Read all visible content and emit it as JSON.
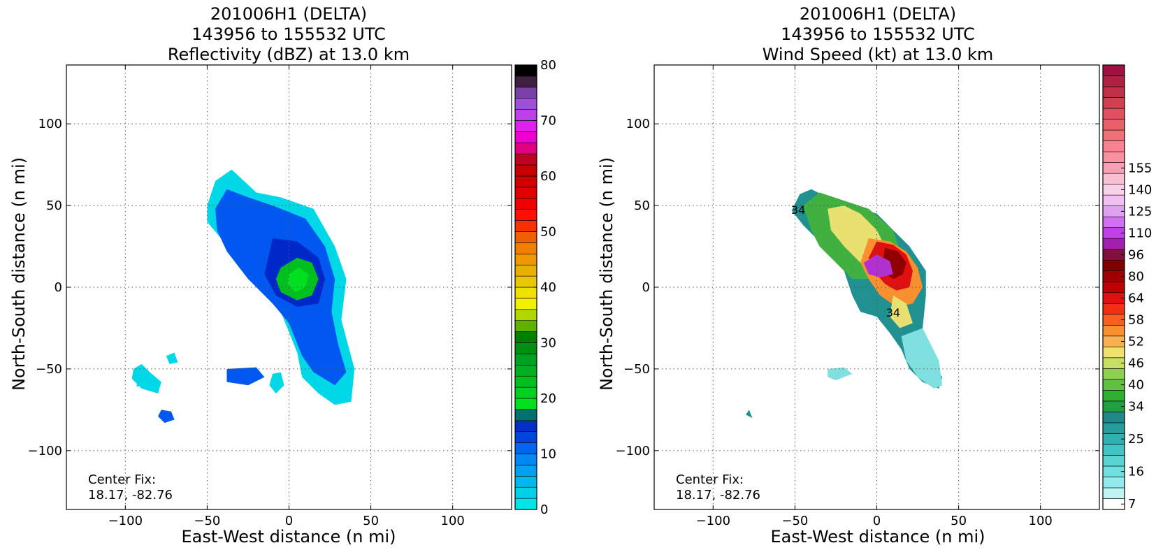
{
  "chart_data": [
    {
      "type": "heatmap",
      "title": [
        "201006H1 (DELTA)",
        "143956 to 155532 UTC",
        "Reflectivity (dBZ) at 13.0 km"
      ],
      "xlabel": "East-West distance (n mi)",
      "ylabel": "North-South distance (n mi)",
      "xlim": [
        -136,
        136
      ],
      "ylim": [
        -136,
        136
      ],
      "xticks": [
        -100,
        -50,
        0,
        50,
        100
      ],
      "yticks": [
        -100,
        -50,
        0,
        50,
        100
      ],
      "xtick_labels": [
        "−100",
        "−50",
        "0",
        "50",
        "100"
      ],
      "ytick_labels": [
        "−100",
        "−50",
        "0",
        "50",
        "100"
      ],
      "grid": true,
      "annotation": [
        "Center Fix:",
        "18.17, -82.76"
      ],
      "colorbar": {
        "min": 0,
        "max": 80,
        "tick_values": [
          0,
          10,
          20,
          30,
          40,
          50,
          60,
          70,
          80
        ],
        "tick_labels": [
          "0",
          "10",
          "20",
          "30",
          "40",
          "50",
          "60",
          "70",
          "80"
        ],
        "colors": [
          "#00e5e5",
          "#00d0e8",
          "#00b8ec",
          "#00a0f0",
          "#0088f4",
          "#0066f0",
          "#0044e0",
          "#0030c8",
          "#007070",
          "#00e020",
          "#00d020",
          "#00c020",
          "#00b020",
          "#00a020",
          "#009010",
          "#008000",
          "#60b000",
          "#b0d800",
          "#f0f000",
          "#f0e000",
          "#e8c800",
          "#e8b000",
          "#f09800",
          "#f08000",
          "#f06000",
          "#f83000",
          "#ff1000",
          "#f00000",
          "#e00000",
          "#d00000",
          "#c80000",
          "#c00020",
          "#e00080",
          "#f000d0",
          "#e020f0",
          "#c040e8",
          "#a050d8",
          "#7840a8",
          "#402040",
          "#000000"
        ]
      },
      "regions": [
        {
          "level": "low",
          "color": "#00d8e8",
          "pts": [
            [
              -50,
              50
            ],
            [
              -45,
              65
            ],
            [
              -35,
              72
            ],
            [
              -20,
              58
            ],
            [
              -5,
              55
            ],
            [
              15,
              48
            ],
            [
              28,
              25
            ],
            [
              35,
              5
            ],
            [
              32,
              -20
            ],
            [
              40,
              -50
            ],
            [
              38,
              -70
            ],
            [
              28,
              -72
            ],
            [
              18,
              -65
            ],
            [
              8,
              -55
            ],
            [
              5,
              -40
            ],
            [
              -5,
              -15
            ],
            [
              -20,
              0
            ],
            [
              -30,
              15
            ],
            [
              -40,
              28
            ],
            [
              -50,
              40
            ]
          ]
        },
        {
          "level": "mid",
          "color": "#0058f0",
          "pts": [
            [
              -45,
              48
            ],
            [
              -38,
              60
            ],
            [
              -25,
              55
            ],
            [
              -10,
              50
            ],
            [
              10,
              42
            ],
            [
              22,
              25
            ],
            [
              28,
              5
            ],
            [
              26,
              -15
            ],
            [
              30,
              -35
            ],
            [
              35,
              -52
            ],
            [
              28,
              -60
            ],
            [
              15,
              -52
            ],
            [
              8,
              -42
            ],
            [
              0,
              -22
            ],
            [
              -10,
              -10
            ],
            [
              -25,
              5
            ],
            [
              -38,
              22
            ],
            [
              -44,
              35
            ]
          ]
        },
        {
          "level": "dark",
          "color": "#0028c8",
          "pts": [
            [
              -10,
              30
            ],
            [
              5,
              28
            ],
            [
              18,
              18
            ],
            [
              22,
              5
            ],
            [
              18,
              -10
            ],
            [
              5,
              -12
            ],
            [
              -8,
              -5
            ],
            [
              -15,
              8
            ]
          ]
        },
        {
          "level": "green",
          "color": "#00c020",
          "pts": [
            [
              -5,
              12
            ],
            [
              5,
              18
            ],
            [
              14,
              15
            ],
            [
              18,
              5
            ],
            [
              14,
              -5
            ],
            [
              5,
              -8
            ],
            [
              -5,
              -3
            ],
            [
              -8,
              5
            ]
          ]
        },
        {
          "level": "green-light",
          "color": "#00e020",
          "pts": [
            [
              0,
              8
            ],
            [
              6,
              12
            ],
            [
              12,
              8
            ],
            [
              10,
              0
            ],
            [
              4,
              -3
            ],
            [
              -1,
              2
            ]
          ]
        },
        {
          "level": "low",
          "color": "#00d8e8",
          "pts": [
            [
              -95,
              -50
            ],
            [
              -90,
              -47
            ],
            [
              -85,
              -52
            ],
            [
              -78,
              -58
            ],
            [
              -80,
              -65
            ],
            [
              -90,
              -62
            ],
            [
              -96,
              -56
            ]
          ]
        },
        {
          "level": "mid",
          "color": "#0058f0",
          "pts": [
            [
              -80,
              -79
            ],
            [
              -78,
              -75
            ],
            [
              -72,
              -76
            ],
            [
              -70,
              -81
            ],
            [
              -76,
              -83
            ]
          ]
        },
        {
          "level": "low",
          "color": "#00d8e8",
          "pts": [
            [
              -75,
              -42
            ],
            [
              -70,
              -40
            ],
            [
              -68,
              -46
            ],
            [
              -73,
              -47
            ]
          ]
        },
        {
          "level": "mid",
          "color": "#0058f0",
          "pts": [
            [
              -38,
              -50
            ],
            [
              -20,
              -49
            ],
            [
              -15,
              -55
            ],
            [
              -25,
              -60
            ],
            [
              -38,
              -58
            ]
          ]
        },
        {
          "level": "low",
          "color": "#00d8e8",
          "pts": [
            [
              -10,
              -53
            ],
            [
              -5,
              -52
            ],
            [
              -3,
              -60
            ],
            [
              -8,
              -65
            ],
            [
              -12,
              -60
            ]
          ]
        },
        {
          "level": "low",
          "color": "#00d8e8",
          "pts": [
            [
              -93,
              -57
            ],
            [
              -91,
              -56
            ],
            [
              -90,
              -60
            ],
            [
              -93,
              -61
            ]
          ]
        }
      ]
    },
    {
      "type": "heatmap",
      "title": [
        "201006H1 (DELTA)",
        "143956 to 155532 UTC",
        "Wind Speed (kt) at 13.0 km"
      ],
      "xlabel": "East-West distance (n mi)",
      "ylabel": "North-South distance (n mi)",
      "xlim": [
        -136,
        136
      ],
      "ylim": [
        -136,
        136
      ],
      "xticks": [
        -100,
        -50,
        0,
        50,
        100
      ],
      "yticks": [
        -100,
        -50,
        0,
        50,
        100
      ],
      "xtick_labels": [
        "−100",
        "−50",
        "0",
        "50",
        "100"
      ],
      "ytick_labels": [
        "−100",
        "−50",
        "0",
        "50",
        "100"
      ],
      "grid": true,
      "annotation": [
        "Center Fix:",
        "18.17, -82.76"
      ],
      "contour_labels": [
        {
          "text": "34",
          "x": -48,
          "y": 45
        },
        {
          "text": "34",
          "x": 10,
          "y": -18
        }
      ],
      "colorbar": {
        "tick_labels": [
          "7",
          "16",
          "25",
          "34",
          "40",
          "46",
          "52",
          "58",
          "64",
          "80",
          "96",
          "110",
          "125",
          "140",
          "155"
        ],
        "tick_bins": [
          0,
          3,
          6,
          9,
          11,
          13,
          15,
          17,
          19,
          21,
          23,
          25,
          27,
          29,
          31
        ],
        "colors": [
          "#ffffff",
          "#c0f4f4",
          "#90ecec",
          "#70e0e0",
          "#58d4d4",
          "#40c4c4",
          "#30b0b0",
          "#289c9c",
          "#208888",
          "#20a040",
          "#30b030",
          "#60c040",
          "#90d050",
          "#c8e060",
          "#f0e070",
          "#f8b050",
          "#f89030",
          "#f86020",
          "#f03010",
          "#e01010",
          "#c00000",
          "#a00000",
          "#800000",
          "#801040",
          "#a020b0",
          "#c040e8",
          "#d070f0",
          "#e0a0f0",
          "#f0c0f0",
          "#f8d0e8",
          "#f8c0d0",
          "#f8a0b8",
          "#f890a0",
          "#f88090",
          "#f07078",
          "#e86068",
          "#e05060",
          "#d04050",
          "#c03048",
          "#b02040",
          "#a01040"
        ]
      },
      "regions": [
        {
          "level": "teal",
          "color": "#209090",
          "pts": [
            [
              -52,
              47
            ],
            [
              -47,
              57
            ],
            [
              -40,
              60
            ],
            [
              -30,
              55
            ],
            [
              -15,
              50
            ],
            [
              0,
              45
            ],
            [
              10,
              35
            ],
            [
              20,
              25
            ],
            [
              30,
              10
            ],
            [
              30,
              -5
            ],
            [
              28,
              -25
            ],
            [
              35,
              -48
            ],
            [
              40,
              -55
            ],
            [
              38,
              -62
            ],
            [
              28,
              -58
            ],
            [
              20,
              -50
            ],
            [
              15,
              -38
            ],
            [
              8,
              -28
            ],
            [
              0,
              -18
            ],
            [
              -10,
              -15
            ],
            [
              -15,
              -5
            ],
            [
              -20,
              10
            ],
            [
              -28,
              20
            ],
            [
              -35,
              28
            ],
            [
              -45,
              38
            ]
          ]
        },
        {
          "level": "light-teal",
          "color": "#80e0e0",
          "pts": [
            [
              15,
              -30
            ],
            [
              28,
              -25
            ],
            [
              38,
              -45
            ],
            [
              40,
              -60
            ],
            [
              35,
              -62
            ],
            [
              25,
              -55
            ],
            [
              18,
              -45
            ]
          ]
        },
        {
          "level": "green",
          "color": "#40b040",
          "pts": [
            [
              -45,
              50
            ],
            [
              -35,
              58
            ],
            [
              -20,
              53
            ],
            [
              -5,
              48
            ],
            [
              10,
              35
            ],
            [
              15,
              20
            ],
            [
              12,
              10
            ],
            [
              0,
              5
            ],
            [
              -15,
              5
            ],
            [
              -25,
              15
            ],
            [
              -35,
              25
            ],
            [
              -40,
              35
            ]
          ]
        },
        {
          "level": "yellow",
          "color": "#e8e070",
          "pts": [
            [
              -30,
              48
            ],
            [
              -20,
              50
            ],
            [
              -10,
              45
            ],
            [
              0,
              35
            ],
            [
              5,
              25
            ],
            [
              0,
              15
            ],
            [
              -10,
              15
            ],
            [
              -20,
              25
            ],
            [
              -28,
              35
            ]
          ]
        },
        {
          "level": "orange",
          "color": "#f89030",
          "pts": [
            [
              -5,
              30
            ],
            [
              8,
              28
            ],
            [
              18,
              22
            ],
            [
              25,
              12
            ],
            [
              28,
              0
            ],
            [
              22,
              -10
            ],
            [
              12,
              -12
            ],
            [
              2,
              -5
            ],
            [
              -5,
              5
            ],
            [
              -10,
              15
            ]
          ]
        },
        {
          "level": "red",
          "color": "#e01010",
          "pts": [
            [
              0,
              28
            ],
            [
              10,
              26
            ],
            [
              18,
              20
            ],
            [
              22,
              10
            ],
            [
              20,
              0
            ],
            [
              12,
              -2
            ],
            [
              5,
              2
            ],
            [
              -2,
              10
            ],
            [
              -5,
              18
            ]
          ]
        },
        {
          "level": "dark-red",
          "color": "#900000",
          "pts": [
            [
              5,
              24
            ],
            [
              13,
              22
            ],
            [
              18,
              15
            ],
            [
              16,
              8
            ],
            [
              10,
              5
            ],
            [
              3,
              10
            ]
          ]
        },
        {
          "level": "purple",
          "color": "#b030d0",
          "pts": [
            [
              -8,
              15
            ],
            [
              0,
              20
            ],
            [
              8,
              16
            ],
            [
              10,
              8
            ],
            [
              2,
              6
            ],
            [
              -5,
              8
            ]
          ]
        },
        {
          "level": "yellow",
          "color": "#e8e070",
          "pts": [
            [
              10,
              -5
            ],
            [
              18,
              -10
            ],
            [
              22,
              -22
            ],
            [
              14,
              -25
            ],
            [
              8,
              -18
            ]
          ]
        },
        {
          "level": "light-teal",
          "color": "#80e0e0",
          "pts": [
            [
              -30,
              -50
            ],
            [
              -20,
              -49
            ],
            [
              -15,
              -53
            ],
            [
              -25,
              -57
            ],
            [
              -30,
              -55
            ]
          ]
        },
        {
          "level": "teal",
          "color": "#209090",
          "pts": [
            [
              -80,
              -78
            ],
            [
              -78,
              -75
            ],
            [
              -76,
              -80
            ]
          ]
        }
      ]
    }
  ]
}
